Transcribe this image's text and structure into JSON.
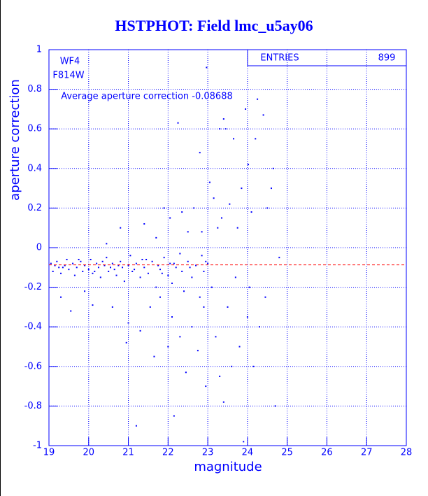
{
  "chart_data": {
    "type": "scatter",
    "title": "HSTPHOT: Field lmc_u5ay06",
    "x_label": "magnitude",
    "y_label": "aperture correction",
    "annotations": [
      "WF4",
      "F814W",
      "Average aperture correction -0.08688"
    ],
    "entries_label": "ENTRIES",
    "entries": 899,
    "reference_line": -0.08688,
    "reference_color": "#ff0000",
    "color": "#0000ff",
    "grid": true,
    "xlim": [
      19,
      28
    ],
    "ylim": [
      -1,
      1
    ],
    "xticks": [
      19,
      20,
      21,
      22,
      23,
      24,
      25,
      26,
      27,
      28
    ],
    "yticks": [
      -1,
      -0.8,
      -0.6,
      -0.4,
      -0.2,
      0,
      0.2,
      0.4,
      0.6,
      0.8,
      1
    ],
    "x": [
      19.05,
      19.1,
      19.2,
      19.25,
      19.3,
      19.4,
      19.45,
      19.5,
      19.6,
      19.65,
      19.7,
      19.8,
      19.85,
      19.9,
      20.0,
      20.05,
      20.1,
      20.2,
      20.25,
      20.3,
      20.4,
      20.45,
      20.5,
      20.6,
      20.65,
      20.7,
      20.8,
      20.85,
      20.9,
      21.0,
      21.05,
      21.1,
      21.2,
      21.3,
      21.35,
      21.4,
      21.5,
      21.6,
      21.7,
      21.75,
      21.8,
      21.9,
      22.0,
      22.05,
      22.1,
      22.2,
      22.3,
      22.35,
      22.4,
      22.5,
      22.6,
      22.7,
      22.8,
      22.85,
      22.9,
      23.0,
      19.3,
      19.55,
      19.9,
      20.1,
      20.45,
      20.6,
      20.8,
      20.95,
      21.0,
      21.2,
      21.3,
      21.4,
      21.55,
      21.65,
      21.7,
      21.8,
      21.9,
      22.0,
      22.05,
      22.1,
      22.15,
      22.25,
      22.3,
      22.35,
      22.45,
      22.5,
      22.6,
      22.65,
      22.75,
      22.8,
      22.85,
      22.9,
      22.95,
      22.97,
      23.05,
      23.1,
      23.15,
      23.2,
      23.25,
      23.3,
      23.35,
      23.4,
      23.45,
      23.5,
      23.55,
      23.6,
      23.65,
      23.7,
      23.75,
      23.8,
      23.85,
      23.9,
      23.95,
      24.0,
      24.02,
      24.05,
      24.1,
      24.15,
      24.2,
      24.25,
      24.3,
      24.4,
      24.45,
      24.5,
      24.6,
      24.65,
      24.7,
      24.8,
      23.3,
      23.4,
      19.15,
      19.35,
      19.75,
      20.15,
      20.35,
      20.55,
      20.75,
      21.15,
      21.45,
      21.85,
      22.15,
      22.55,
      22.95
    ],
    "values": [
      -0.08,
      -0.12,
      -0.07,
      -0.1,
      -0.13,
      -0.09,
      -0.06,
      -0.11,
      -0.08,
      -0.14,
      -0.1,
      -0.07,
      -0.12,
      -0.09,
      -0.11,
      -0.06,
      -0.13,
      -0.08,
      -0.1,
      -0.15,
      -0.09,
      -0.05,
      -0.12,
      -0.08,
      -0.11,
      -0.14,
      -0.07,
      -0.1,
      -0.17,
      -0.09,
      -0.04,
      -0.12,
      -0.08,
      -0.15,
      -0.06,
      -0.1,
      -0.13,
      -0.07,
      -0.2,
      -0.09,
      -0.11,
      -0.05,
      -0.14,
      -0.08,
      -0.18,
      -0.1,
      -0.03,
      -0.12,
      -0.22,
      -0.07,
      -0.15,
      -0.09,
      -0.25,
      -0.04,
      -0.12,
      -0.08,
      -0.25,
      -0.32,
      -0.22,
      -0.29,
      0.02,
      -0.3,
      0.1,
      -0.48,
      -0.38,
      -0.9,
      -0.42,
      0.12,
      -0.3,
      -0.55,
      0.05,
      -0.25,
      0.2,
      -0.5,
      0.15,
      -0.35,
      -0.85,
      0.63,
      -0.45,
      0.18,
      -0.63,
      0.08,
      -0.4,
      0.2,
      -0.52,
      0.48,
      0.08,
      -0.3,
      -0.7,
      0.91,
      0.33,
      -0.2,
      0.25,
      -0.45,
      0.1,
      -0.65,
      0.15,
      -0.78,
      0.6,
      -0.3,
      0.22,
      -0.6,
      0.55,
      -0.15,
      0.1,
      -0.5,
      0.3,
      -0.98,
      0.7,
      -0.35,
      0.42,
      -0.2,
      0.18,
      -0.6,
      0.55,
      0.75,
      -0.4,
      0.67,
      -0.25,
      0.2,
      0.3,
      0.4,
      -0.8,
      -0.05,
      0.6,
      0.65,
      -0.09,
      -0.1,
      -0.06,
      -0.12,
      -0.07,
      -0.1,
      -0.09,
      -0.11,
      -0.06,
      -0.13,
      -0.08,
      -0.1,
      -0.07
    ]
  }
}
